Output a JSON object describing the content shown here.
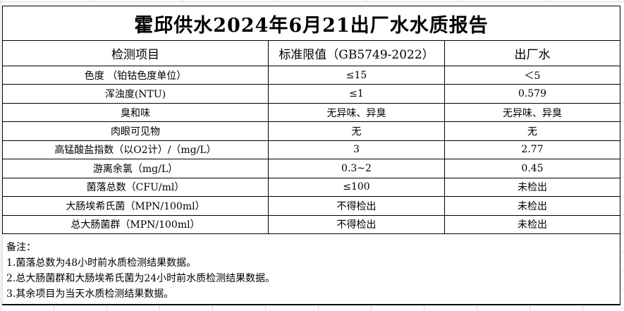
{
  "title": "霍邱供水2024年6月21出厂水水质报告",
  "table": {
    "columns": {
      "item": "检测项目",
      "limit": "标准限值（GB5749-2022）",
      "value": "出厂水"
    },
    "rows": [
      {
        "item": "色度 （铂钴色度单位）",
        "limit": "≤15",
        "value": "＜5"
      },
      {
        "item": "浑浊度(NTU)",
        "limit": "≤1",
        "value": "0.579"
      },
      {
        "item": "臭和味",
        "limit": "无异味、异臭",
        "value": "无异味、异臭"
      },
      {
        "item": "肉眼可见物",
        "limit": "无",
        "value": "无"
      },
      {
        "item": "高锰酸盐指数（以O2计）/（mg/L）",
        "limit": "3",
        "value": "2.77"
      },
      {
        "item": "游离余氯（mg/L）",
        "limit": "0.3~2",
        "value": "0.45"
      },
      {
        "item": "菌落总数（CFU/ml）",
        "limit": "≤100",
        "value": "未检出"
      },
      {
        "item": "大肠埃希氏菌（MPN/100ml）",
        "limit": "不得检出",
        "value": "未检出"
      },
      {
        "item": "总大肠菌群（MPN/100ml）",
        "limit": "不得检出",
        "value": "未检出"
      }
    ]
  },
  "notes": {
    "label": "备注：",
    "items": [
      "1.菌落总数为48小时前水质检测结果数据。",
      "2.总大肠菌群和大肠埃希氏菌为24小时前水质检测结果数据。",
      "3.其余项目为当天水质检测结果数据。"
    ]
  },
  "colors": {
    "background": "#ffffff",
    "text": "#000000",
    "table_border": "#000000",
    "gridline": "#d9d9d9"
  }
}
